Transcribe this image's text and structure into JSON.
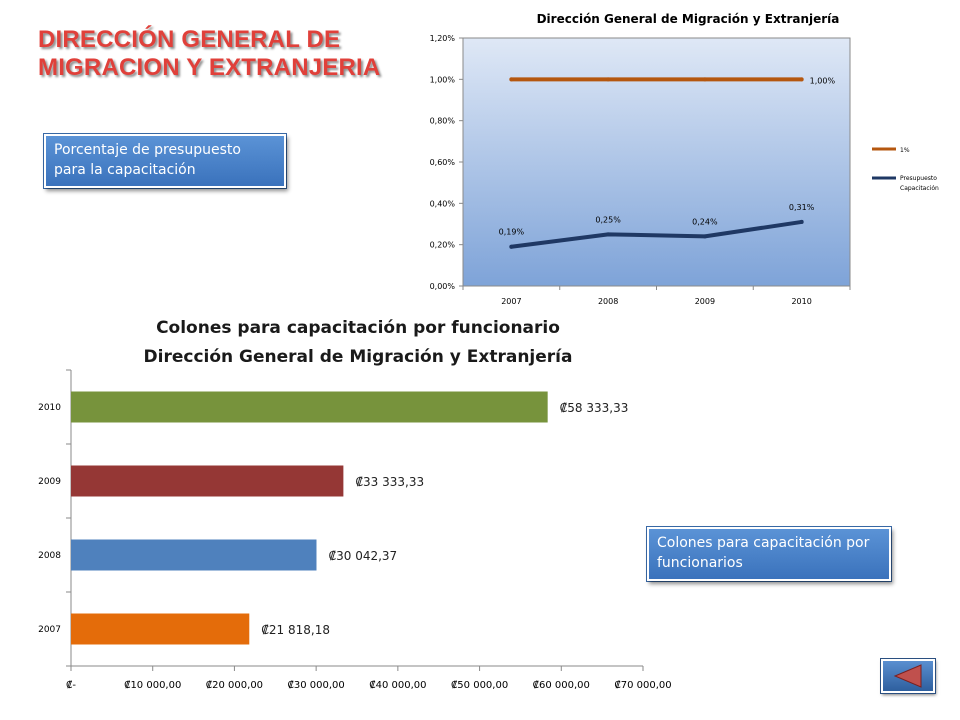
{
  "page": {
    "heading_line1": "DIRECCIÓN GENERAL DE",
    "heading_line2": "MIGRACION Y EXTRANJERIA",
    "callout_top": "Porcentaje de presupuesto para la capacitación",
    "callout_bottom": "Colones para capacitación por funcionarios",
    "nav_icon": "back-triangle-icon"
  },
  "chart_data": [
    {
      "type": "line",
      "title": "Dirección General de Migración y Extranjería",
      "categories": [
        "2007",
        "2008",
        "2009",
        "2010"
      ],
      "series": [
        {
          "name": "1%",
          "values": [
            1.0,
            1.0,
            1.0,
            1.0
          ],
          "labels": [
            "",
            "",
            "",
            "1,00%"
          ],
          "color": "#b5570f"
        },
        {
          "name": "Presupuesto Capacitación",
          "values": [
            0.19,
            0.25,
            0.24,
            0.31
          ],
          "labels": [
            "0,19%",
            "0,25%",
            "0,24%",
            "0,31%"
          ],
          "color": "#1f3864"
        }
      ],
      "ylim": [
        0,
        1.2
      ],
      "yticks": [
        "0,00%",
        "0,20%",
        "0,40%",
        "0,60%",
        "0,80%",
        "1,00%",
        "1,20%"
      ],
      "grid": false,
      "legend": "right"
    },
    {
      "type": "bar",
      "orientation": "horizontal",
      "title_line1": "Colones para capacitación por funcionario",
      "title_line2": "Dirección General de Migración y Extranjería",
      "categories": [
        "2007",
        "2008",
        "2009",
        "2010"
      ],
      "values": [
        21818.18,
        30042.37,
        33333.33,
        58333.33
      ],
      "labels": [
        "₡21 818,18",
        "₡30 042,37",
        "₡33 333,33",
        "₡58 333,33"
      ],
      "colors": [
        "#e46c0a",
        "#4f81bd",
        "#953735",
        "#77933c"
      ],
      "xlim": [
        0,
        70000
      ],
      "xticks": [
        "₡-",
        "₡10 000,00",
        "₡20 000,00",
        "₡30 000,00",
        "₡40 000,00",
        "₡50 000,00",
        "₡60 000,00",
        "₡70 000,00"
      ],
      "grid": false
    }
  ]
}
